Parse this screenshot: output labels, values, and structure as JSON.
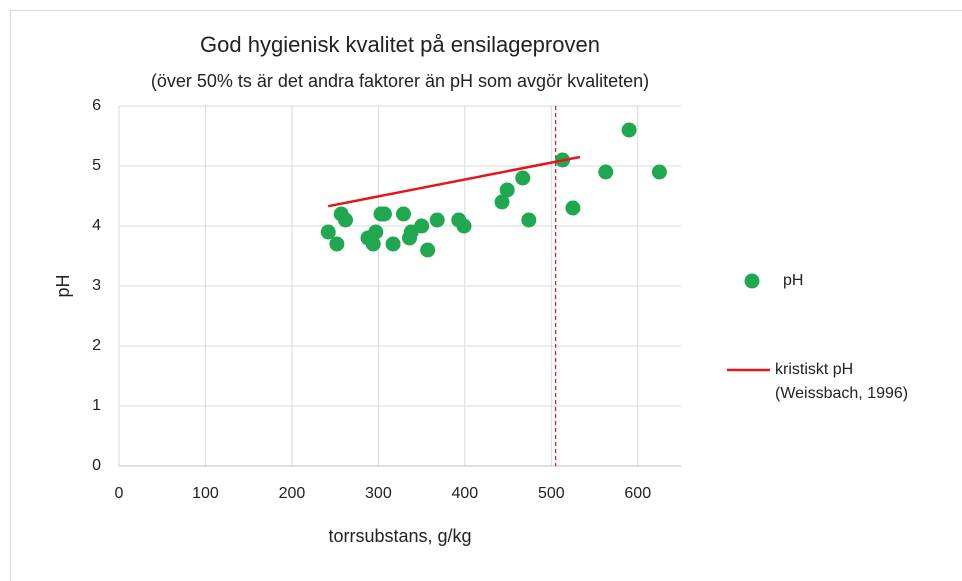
{
  "chart_data": {
    "type": "scatter",
    "title": "God hygienisk kvalitet på ensilageproven",
    "subtitle": "(över 50% ts är det andra faktorer än pH som avgör kvaliteten)",
    "x_label": "torrsubstans, g/kg",
    "y_label": "pH",
    "xlim": [
      0,
      650
    ],
    "xticks": [
      0,
      100,
      200,
      300,
      400,
      500,
      600
    ],
    "ylim": [
      0,
      6
    ],
    "yticks": [
      0,
      1,
      2,
      3,
      4,
      5,
      6
    ],
    "grid": true,
    "series": [
      {
        "name": "pH",
        "color": "#1fa84f",
        "kind": "points",
        "x": [
          242,
          252,
          257,
          262,
          288,
          294,
          297,
          303,
          307,
          317,
          329,
          336,
          338,
          350,
          357,
          368,
          393,
          399,
          443,
          449,
          467,
          474,
          525,
          513,
          563,
          590,
          625
        ],
        "values": [
          3.9,
          3.7,
          4.2,
          4.1,
          3.8,
          3.7,
          3.9,
          4.2,
          4.2,
          3.7,
          4.2,
          3.8,
          3.9,
          4.0,
          3.6,
          4.1,
          4.1,
          4.0,
          4.4,
          4.6,
          4.8,
          4.1,
          4.3,
          5.1,
          4.9,
          5.6,
          4.9
        ]
      },
      {
        "name": "kristiskt pH (Weissbach, 1996)",
        "color": "#e8141b",
        "kind": "line",
        "x": [
          242,
          533
        ],
        "values": [
          4.33,
          5.15
        ]
      }
    ],
    "reference_line": {
      "x": 505,
      "color": "#e8141b"
    },
    "legend": "right"
  }
}
